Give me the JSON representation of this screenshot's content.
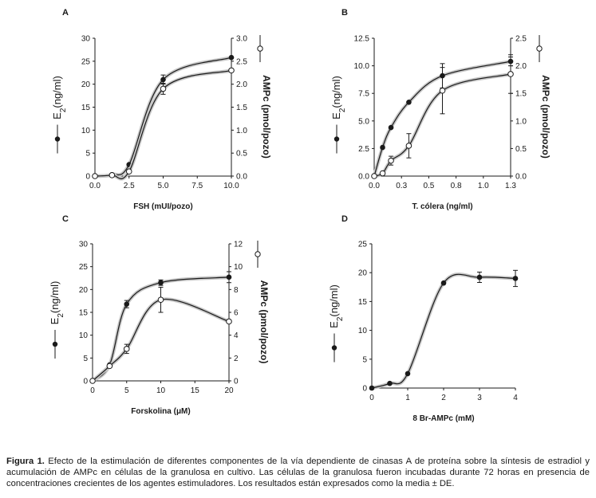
{
  "caption": {
    "lead": "Figura 1.",
    "text": " Efecto de la estimulación de diferentes componentes de la vía dependiente de cinasas A de proteína sobre la síntesis de estradiol y acumulación de AMPc en células de la granulosa en cultivo. Las células de la granulosa fueron incubadas durante 72 horas en presencia de concentraciones crecientes de los agentes estimuladores. Los resultados están expresados como la media ± DE."
  },
  "colors": {
    "ink": "#1a1a1a",
    "halo": "#c8c8c8",
    "open_fill": "#ffffff"
  },
  "chart_data": [
    {
      "panel": "A",
      "type": "line",
      "xlabel": "FSH (mUI/pozo)",
      "ylabel": "E2(ng/ml)",
      "y2label": "AMPc (pmol/pozo)",
      "xlim": [
        0,
        10
      ],
      "ylim": [
        0,
        30
      ],
      "y2lim": [
        0,
        3
      ],
      "xticks": [
        "0.0",
        "2.5",
        "5.0",
        "7.5",
        "10.0"
      ],
      "yticks": [
        "0",
        "5",
        "10",
        "15",
        "20",
        "25",
        "30"
      ],
      "y2ticks": [
        "0.0",
        "0.5",
        "1.0",
        "1.5",
        "2.0",
        "2.5",
        "3.0"
      ],
      "series": [
        {
          "marker": "filled",
          "axis": "left",
          "x": [
            0,
            1.25,
            2.5,
            5,
            10
          ],
          "y": [
            0,
            0.3,
            2.5,
            21,
            25.8
          ],
          "err": [
            0,
            0,
            0,
            1,
            0
          ]
        },
        {
          "marker": "open",
          "axis": "right",
          "x": [
            0,
            1.25,
            2.5,
            5,
            10
          ],
          "y": [
            0,
            0.02,
            0.1,
            1.9,
            2.3
          ],
          "err": [
            0,
            0,
            0,
            0.12,
            0
          ]
        }
      ]
    },
    {
      "panel": "B",
      "type": "line",
      "xlabel": "T. cólera (ng/ml)",
      "ylabel": "E2(ng/ml)",
      "y2label": "AMPc (pmol/pozo)",
      "xlim": [
        0,
        1.3
      ],
      "ylim": [
        0,
        12.5
      ],
      "y2lim": [
        0,
        2.5
      ],
      "xticks": [
        "0.0",
        "0.3",
        "0.5",
        "0.8",
        "1.0",
        "1.3"
      ],
      "yticks": [
        "0.0",
        "2.5",
        "5.0",
        "7.5",
        "10.0",
        "12.5"
      ],
      "y2ticks": [
        "0.0",
        "0.5",
        "1.0",
        "1.5",
        "2.0",
        "2.5"
      ],
      "series": [
        {
          "marker": "filled",
          "axis": "left",
          "x": [
            0,
            0.08,
            0.16,
            0.33,
            0.65,
            1.3
          ],
          "y": [
            0,
            2.6,
            4.4,
            6.7,
            9.1,
            10.4
          ],
          "err": [
            0,
            0,
            0,
            0,
            1.1,
            0.4
          ]
        },
        {
          "marker": "open",
          "axis": "right",
          "x": [
            0,
            0.08,
            0.16,
            0.33,
            0.65,
            1.3
          ],
          "y": [
            0,
            0.05,
            0.28,
            0.55,
            1.55,
            1.85
          ],
          "err": [
            0,
            0,
            0.08,
            0.22,
            0.42,
            0.35
          ]
        }
      ]
    },
    {
      "panel": "C",
      "type": "line",
      "xlabel": "Forskolina (μM)",
      "ylabel": "E2(ng/ml)",
      "y2label": "AMPc (pmol/pozo)",
      "xlim": [
        0,
        20
      ],
      "ylim": [
        0,
        30
      ],
      "y2lim": [
        0,
        12
      ],
      "xticks": [
        "0",
        "5",
        "10",
        "15",
        "20"
      ],
      "yticks": [
        "0",
        "5",
        "10",
        "15",
        "20",
        "25",
        "30"
      ],
      "y2ticks": [
        "0",
        "2",
        "4",
        "6",
        "8",
        "10",
        "12"
      ],
      "series": [
        {
          "marker": "filled",
          "axis": "left",
          "x": [
            0,
            2.5,
            5,
            10,
            20
          ],
          "y": [
            0,
            3.5,
            16.8,
            21.5,
            22.7
          ],
          "err": [
            0,
            0,
            0.8,
            0.6,
            1.2
          ]
        },
        {
          "marker": "open",
          "axis": "right",
          "x": [
            0,
            2.5,
            5,
            10,
            20
          ],
          "y": [
            0,
            1.3,
            2.8,
            7.1,
            5.2
          ],
          "err": [
            0,
            0,
            0.4,
            1.1,
            0
          ]
        }
      ]
    },
    {
      "panel": "D",
      "type": "line",
      "xlabel": "8 Br-AMPc (mM)",
      "ylabel": "E2(ng/ml)",
      "xlim": [
        0,
        4
      ],
      "ylim": [
        0,
        25
      ],
      "xticks": [
        "0",
        "1",
        "2",
        "3",
        "4"
      ],
      "yticks": [
        "0",
        "5",
        "10",
        "15",
        "20",
        "25"
      ],
      "series": [
        {
          "marker": "filled",
          "axis": "left",
          "x": [
            0,
            0.5,
            1,
            2,
            3,
            4
          ],
          "y": [
            0,
            0.8,
            2.5,
            18.2,
            19.2,
            19
          ],
          "err": [
            0,
            0,
            0,
            0,
            0.9,
            1.4
          ]
        }
      ]
    }
  ]
}
